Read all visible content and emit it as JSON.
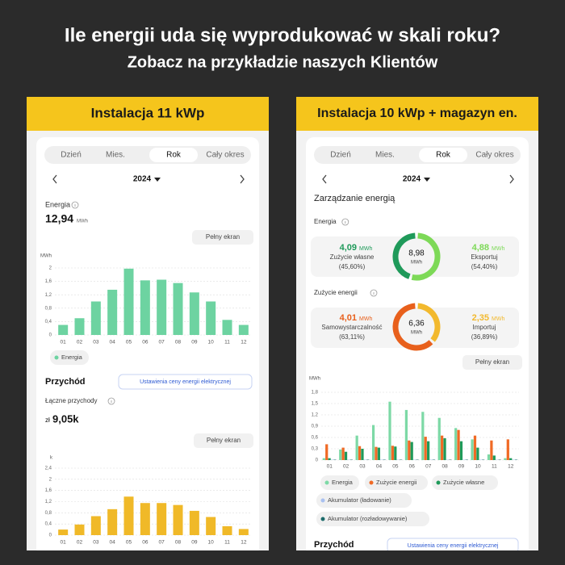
{
  "header": {
    "title": "Ile energii uda się wyprodukować w skali roku?",
    "subtitle": "Zobacz na przykładzie naszych Klientów"
  },
  "panels": [
    {
      "title": "Instalacja 11 kWp",
      "tabs": [
        "Dzień",
        "Mies.",
        "Rok",
        "Cały okres"
      ],
      "year": "2024",
      "energy_label": "Energia",
      "energy_value": "12,94",
      "energy_unit": "MWh",
      "fullscreen": "Pełny ekran",
      "revenue_title": "Przychód",
      "price_button": "Ustawienia ceny energii elektrycznej",
      "revenue_label": "Łączne przychody",
      "currency": "zł",
      "revenue_value": "9,05k",
      "fullscreen_2": "Pełny ekran"
    },
    {
      "title": "Instalacja 10 kWp + magazyn en.",
      "tabs": [
        "Dzień",
        "Mies.",
        "Rok",
        "Cały okres"
      ],
      "year": "2024",
      "section_title": "Zarządzanie energią",
      "fullscreen": "Pełny ekran",
      "revenue_title": "Przychód",
      "price_button": "Ustawienia ceny energii elektrycznej"
    }
  ],
  "chart_data": [
    {
      "type": "bar",
      "y_label": "MWh",
      "grid": true,
      "categories": [
        "01",
        "02",
        "03",
        "04",
        "05",
        "06",
        "07",
        "08",
        "09",
        "10",
        "11",
        "12"
      ],
      "series": [
        {
          "name": "Energia",
          "color": "#6dd3a1",
          "values": [
            0.3,
            0.5,
            1.0,
            1.35,
            1.98,
            1.63,
            1.65,
            1.55,
            1.27,
            1.0,
            0.45,
            0.3
          ]
        }
      ],
      "ylim": [
        0,
        2
      ],
      "yticks": [
        0,
        {
          "value": 0.4,
          "label": "0,4"
        },
        {
          "value": 0.8,
          "label": "0,8"
        },
        {
          "value": 1.2,
          "label": "1,2"
        },
        {
          "value": 1.6,
          "label": "1,6"
        },
        2
      ]
    },
    {
      "type": "bar",
      "y_label": "k",
      "grid": true,
      "categories": [
        "01",
        "02",
        "03",
        "04",
        "05",
        "06",
        "07",
        "08",
        "09",
        "10",
        "11",
        "12"
      ],
      "series": [
        {
          "color": "#f0b928",
          "values": [
            0.2,
            0.38,
            0.68,
            0.93,
            1.38,
            1.15,
            1.15,
            1.08,
            0.87,
            0.65,
            0.32,
            0.22
          ]
        }
      ],
      "ylim": [
        0,
        2.4
      ],
      "yticks": [
        0,
        {
          "value": 0.4,
          "label": "0,4"
        },
        {
          "value": 0.8,
          "label": "0,8"
        },
        {
          "value": 1.2,
          "label": "1,2"
        },
        {
          "value": 1.6,
          "label": "1,6"
        },
        2,
        {
          "value": 2.4,
          "label": "2,4"
        }
      ]
    },
    {
      "type": "donut",
      "title": "Energia",
      "center_value": "8,98",
      "center_unit": "MWh",
      "categories": [
        "Zużycie własne",
        "Eksportuj"
      ],
      "amounts": [
        "4,09",
        "4,88"
      ],
      "units": [
        "MWh",
        "MWh"
      ],
      "values": [
        45.6,
        54.4
      ],
      "value_labels": [
        "(45,60%)",
        "(54,40%)"
      ],
      "colors": [
        "#1f9a5a",
        "#7dd957"
      ]
    },
    {
      "type": "donut",
      "title": "Zużycie energii",
      "center_value": "6,36",
      "center_unit": "MWh",
      "categories": [
        "Samowystarczalność",
        "Importuj"
      ],
      "amounts": [
        "4,01",
        "2,35"
      ],
      "units": [
        "MWh",
        "MWh"
      ],
      "values": [
        63.11,
        36.89
      ],
      "value_labels": [
        "(63,11%)",
        "(36,89%)"
      ],
      "colors": [
        "#e8601c",
        "#f2b92e"
      ]
    },
    {
      "type": "bar",
      "y_label": "MWh",
      "grid": true,
      "categories": [
        "01",
        "02",
        "03",
        "04",
        "05",
        "06",
        "07",
        "08",
        "09",
        "10",
        "11",
        "12"
      ],
      "series": [
        {
          "name": "Energia",
          "color": "#7dd9a6",
          "values": [
            0.05,
            0.28,
            0.65,
            0.93,
            1.55,
            1.33,
            1.28,
            1.12,
            0.85,
            0.55,
            0.15,
            0.05
          ]
        },
        {
          "name": "Zużycie energii",
          "color": "#f06a25",
          "values": [
            0.42,
            0.33,
            0.37,
            0.35,
            0.38,
            0.52,
            0.62,
            0.65,
            0.8,
            0.65,
            0.52,
            0.55
          ]
        },
        {
          "name": "Zużycie własne",
          "color": "#1f9a5a",
          "values": [
            0.05,
            0.22,
            0.3,
            0.33,
            0.36,
            0.48,
            0.5,
            0.58,
            0.5,
            0.33,
            0.12,
            0.05
          ]
        },
        {
          "name": "Akumulator (ładowanie)",
          "color": "#a9c1f0",
          "values": [
            0.01,
            0.01,
            0.01,
            0.01,
            0.01,
            0.01,
            0.01,
            0.01,
            0.01,
            0.01,
            0.01,
            0.01
          ]
        },
        {
          "name": "Akumulator (rozładowywanie)",
          "color": "#1c6b6b",
          "values": [
            0.01,
            0.01,
            0.01,
            0.01,
            0.01,
            0.01,
            0.01,
            0.01,
            0.01,
            0.01,
            0.01,
            0.01
          ]
        }
      ],
      "ylim": [
        0,
        1.8
      ],
      "yticks": [
        0,
        {
          "value": 0.3,
          "label": "0,3"
        },
        {
          "value": 0.6,
          "label": "0,6"
        },
        {
          "value": 0.9,
          "label": "0,9"
        },
        {
          "value": 1.2,
          "label": "1,2"
        },
        {
          "value": 1.5,
          "label": "1,5"
        },
        {
          "value": 1.8,
          "label": "1,8"
        }
      ]
    }
  ]
}
